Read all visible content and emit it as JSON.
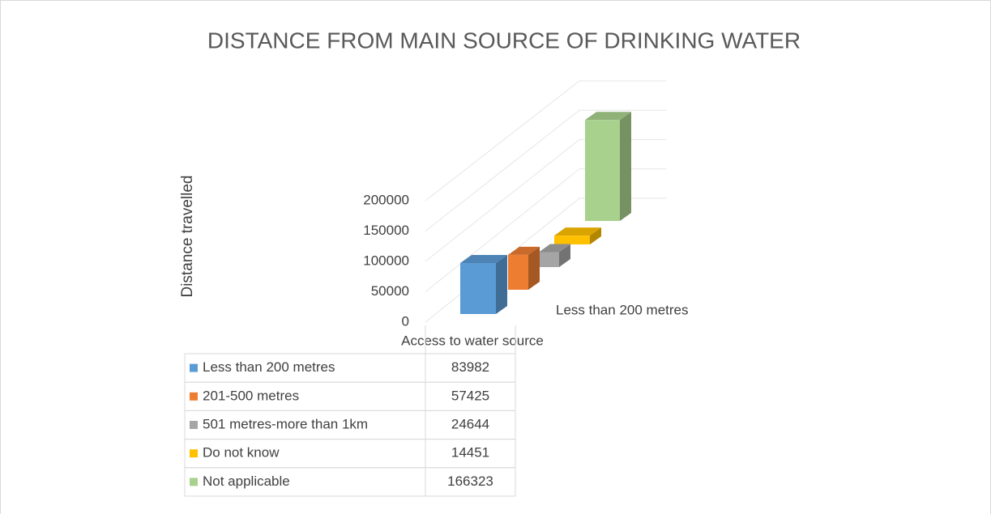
{
  "chart_data": {
    "type": "bar3d",
    "title": "DISTANCE FROM MAIN SOURCE OF DRINKING WATER",
    "x_label": "Access to water source",
    "y_label": "Distance travelled",
    "categories": [
      "Less than 200 metres"
    ],
    "series": [
      {
        "name": "Less than 200 metres",
        "color": "#5b9bd5",
        "values": [
          83982
        ]
      },
      {
        "name": "201-500 metres",
        "color": "#ed7d31",
        "values": [
          57425
        ]
      },
      {
        "name": "501 metres-more than 1km",
        "color": "#a5a5a5",
        "values": [
          24644
        ]
      },
      {
        "name": "Do not know",
        "color": "#ffc000",
        "values": [
          14451
        ]
      },
      {
        "name": "Not applicable",
        "color": "#a9d18e",
        "values": [
          166323
        ]
      }
    ],
    "ylim": [
      0,
      200000
    ],
    "yticks": [
      0,
      50000,
      100000,
      150000,
      200000
    ],
    "grid": true,
    "data_table": true
  }
}
